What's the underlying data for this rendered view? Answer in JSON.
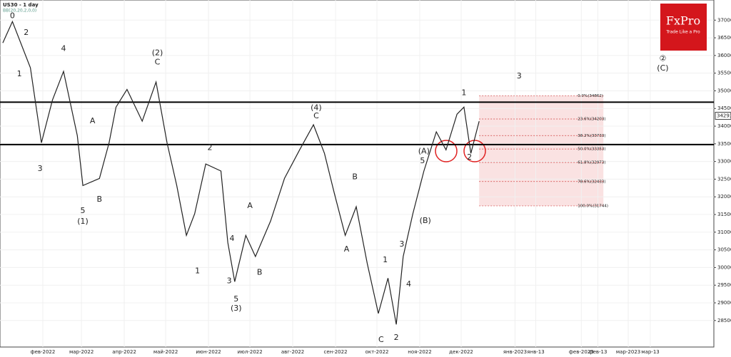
{
  "chart_data": {
    "type": "line",
    "title": "US30 - 1 day",
    "subtitle": "BB(20,20,2,0,0)",
    "brand": {
      "name": "FxPro",
      "slogan": "Trade Like a Pro"
    },
    "x": [
      2,
      9,
      22,
      30,
      38,
      46,
      56,
      60,
      72,
      79,
      84,
      92,
      103,
      113,
      121,
      128,
      135,
      141,
      149,
      160,
      165,
      170,
      178,
      185,
      196,
      206,
      217,
      227,
      235,
      242,
      250,
      258,
      266,
      274,
      281,
      287,
      292,
      299,
      307,
      316,
      323,
      331,
      336,
      341,
      347
    ],
    "series": [
      {
        "name": "US30",
        "color": "#222222",
        "values": [
          36355,
          36960,
          35650,
          33530,
          34740,
          35550,
          33730,
          32320,
          32520,
          33530,
          34540,
          35040,
          34140,
          35250,
          33530,
          32320,
          30910,
          31520,
          32930,
          32730,
          30710,
          29600,
          30910,
          30310,
          31320,
          32520,
          33330,
          34040,
          33230,
          32120,
          30910,
          31720,
          30110,
          28700,
          29700,
          28390,
          30310,
          31520,
          32730,
          33840,
          33330,
          34340,
          34540,
          33230,
          34140
        ]
      }
    ],
    "last_price": 34293,
    "levels": [
      34680,
      33480
    ],
    "fib": {
      "start": 347,
      "end": 437,
      "levels": [
        {
          "value": 34862,
          "label": "0.0%(34862)"
        },
        {
          "value": 34203,
          "label": "23.6%(34203)"
        },
        {
          "value": 33733,
          "label": "38.2%(33733)"
        },
        {
          "value": 33353,
          "label": "50.0%(33353)"
        },
        {
          "value": 32973,
          "label": "61.8%(32973)"
        },
        {
          "value": 32433,
          "label": "78.6%(32433)"
        },
        {
          "value": 31744,
          "label": "100.0%(31744)"
        }
      ]
    },
    "annotations": [
      {
        "text": "0",
        "x": 9,
        "y": 37120
      },
      {
        "text": "2",
        "x": 19,
        "y": 36640
      },
      {
        "text": "1",
        "x": 14,
        "y": 35470
      },
      {
        "text": "4",
        "x": 46,
        "y": 36190
      },
      {
        "text": "3",
        "x": 29,
        "y": 32790
      },
      {
        "text": "5",
        "x": 60,
        "y": 31600
      },
      {
        "text": "(1)",
        "x": 60,
        "y": 31300
      },
      {
        "text": "A",
        "x": 67,
        "y": 34140
      },
      {
        "text": "B",
        "x": 72,
        "y": 31920
      },
      {
        "text": "(2)",
        "x": 114,
        "y": 36070
      },
      {
        "text": "C",
        "x": 114,
        "y": 35810
      },
      {
        "text": "2",
        "x": 152,
        "y": 33390
      },
      {
        "text": "1",
        "x": 143,
        "y": 29900
      },
      {
        "text": "4",
        "x": 168,
        "y": 30810
      },
      {
        "text": "3",
        "x": 166,
        "y": 29620
      },
      {
        "text": "5",
        "x": 171,
        "y": 29100
      },
      {
        "text": "(3)",
        "x": 171,
        "y": 28840
      },
      {
        "text": "A",
        "x": 181,
        "y": 31740
      },
      {
        "text": "B",
        "x": 188,
        "y": 29860
      },
      {
        "text": "(4)",
        "x": 229,
        "y": 34520
      },
      {
        "text": "C",
        "x": 229,
        "y": 34280
      },
      {
        "text": "B",
        "x": 257,
        "y": 32560
      },
      {
        "text": "A",
        "x": 251,
        "y": 30510
      },
      {
        "text": "1",
        "x": 279,
        "y": 30210
      },
      {
        "text": "C",
        "x": 276,
        "y": 27950
      },
      {
        "text": "2",
        "x": 287,
        "y": 28010
      },
      {
        "text": "3",
        "x": 291,
        "y": 30650
      },
      {
        "text": "4",
        "x": 296,
        "y": 29520
      },
      {
        "text": "5",
        "x": 306,
        "y": 33010
      },
      {
        "text": "(A)",
        "x": 307,
        "y": 33290
      },
      {
        "text": "(B)",
        "x": 308,
        "y": 31320
      },
      {
        "text": "1",
        "x": 336,
        "y": 34940
      },
      {
        "text": "2",
        "x": 340,
        "y": 33110
      },
      {
        "text": "3",
        "x": 376,
        "y": 35410
      },
      {
        "text": "②",
        "x": 480,
        "y": 35910
      },
      {
        "text": "(C)",
        "x": 480,
        "y": 35630
      }
    ],
    "xlim": [
      0,
      517
    ],
    "xticks": [
      {
        "value": 31,
        "label": "фев-2022"
      },
      {
        "value": 59,
        "label": "мар-2022"
      },
      {
        "value": 90,
        "label": "апр-2022"
      },
      {
        "value": 120,
        "label": "май-2022"
      },
      {
        "value": 151,
        "label": "июн-2022"
      },
      {
        "value": 181,
        "label": "июл-2022"
      },
      {
        "value": 212,
        "label": "авг-2022"
      },
      {
        "value": 243,
        "label": "сен-2022"
      },
      {
        "value": 273,
        "label": "окт-2022"
      },
      {
        "value": 304,
        "label": "ноя-2022"
      },
      {
        "value": 334,
        "label": "дек-2022"
      },
      {
        "value": 373,
        "label": "янв-2023"
      },
      {
        "value": 388,
        "label": "янв-13"
      },
      {
        "value": 421,
        "label": "фев-2023"
      },
      {
        "value": 433,
        "label": "фев-13"
      },
      {
        "value": 455,
        "label": "мар-2023"
      },
      {
        "value": 471,
        "label": "мар-13"
      }
    ],
    "ylim": [
      27750,
      37570
    ],
    "yticks": [
      28500,
      29000,
      29500,
      30000,
      30500,
      31000,
      31500,
      32000,
      32500,
      33000,
      33500,
      34000,
      34500,
      35000,
      35500,
      36000,
      36500,
      37000
    ],
    "grid": true
  }
}
